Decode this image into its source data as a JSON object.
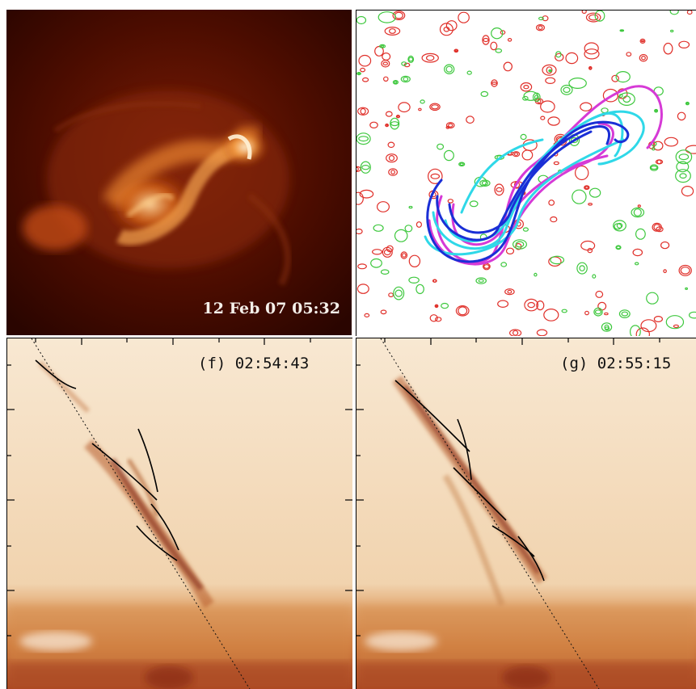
{
  "panels": {
    "xrt": {
      "timestamp": "12 Feb 07 05:32"
    },
    "f": {
      "label": "(f) 02:54:43"
    },
    "g": {
      "label": "(g) 02:55:15"
    }
  },
  "colors": {
    "xrt_background": "#3a0800",
    "xrt_bright": "#ffe6b0",
    "model_red_contours": "#e0302a",
    "model_green_contours": "#3ec83e",
    "model_blue_lines": "#1a2fd6",
    "model_cyan_lines": "#2fd8e8",
    "model_magenta_lines": "#d63ad6",
    "spectral_background": "#f6e2c8",
    "spectral_dark": "#7a1a08"
  }
}
